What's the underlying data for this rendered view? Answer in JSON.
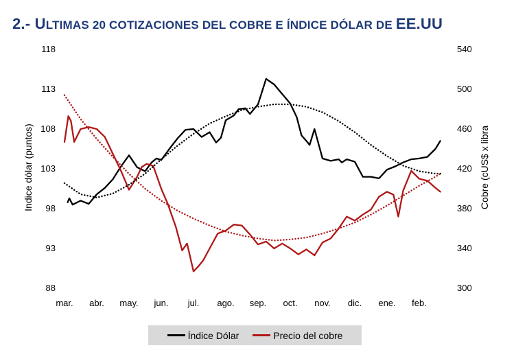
{
  "title": {
    "prefix": "2.- U",
    "rest": "ltimas 20 cotizaciones del cobre e índice dólar de ",
    "suffix": "EE.UU"
  },
  "chart_data": {
    "type": "line",
    "x_tick_labels": [
      "mar.",
      "abr.",
      "may.",
      "jun.",
      "jul.",
      "ago.",
      "sep.",
      "oct.",
      "nov.",
      "dic.",
      "ene.",
      "feb."
    ],
    "y_left": {
      "label": "Indice dólar (puntos)",
      "ticks": [
        118,
        113,
        108,
        103,
        98,
        93,
        88
      ],
      "range": [
        88,
        118
      ]
    },
    "y_right": {
      "label": "Cobre (cUS$ x libra",
      "ticks": [
        540,
        500,
        460,
        420,
        380,
        340,
        300
      ],
      "range": [
        300,
        540
      ]
    },
    "colors": {
      "dollar": "#000000",
      "copper": "#b01818"
    },
    "series": [
      {
        "name": "Índice Dólar",
        "axis": "left",
        "x": [
          0.1,
          0.15,
          0.25,
          0.5,
          0.75,
          1.0,
          1.25,
          1.5,
          1.75,
          2.0,
          2.25,
          2.5,
          2.7,
          2.85,
          3.0,
          3.25,
          3.5,
          3.75,
          4.0,
          4.25,
          4.5,
          4.7,
          4.85,
          5.0,
          5.25,
          5.4,
          5.6,
          5.75,
          6.0,
          6.25,
          6.5,
          6.75,
          7.0,
          7.2,
          7.35,
          7.5,
          7.6,
          7.75,
          8.0,
          8.25,
          8.5,
          8.6,
          8.75,
          9.0,
          9.25,
          9.5,
          9.75,
          10.0,
          10.25,
          10.5,
          10.75,
          11.0,
          11.25,
          11.5,
          11.65
        ],
        "y": [
          98.8,
          99.3,
          98.5,
          99.0,
          98.6,
          99.8,
          100.6,
          101.7,
          103.3,
          104.7,
          103.2,
          102.7,
          103.8,
          104.3,
          104.1,
          105.5,
          106.8,
          107.9,
          108.0,
          107.0,
          107.6,
          106.3,
          106.9,
          109.1,
          109.7,
          110.5,
          110.6,
          109.9,
          111.1,
          114.3,
          113.6,
          112.4,
          111.2,
          109.5,
          107.2,
          106.5,
          106.0,
          108.0,
          104.3,
          104.0,
          104.2,
          103.8,
          104.2,
          103.9,
          102.0,
          102.0,
          101.8,
          102.9,
          103.3,
          103.8,
          104.2,
          104.3,
          104.5,
          105.5,
          106.5
        ]
      },
      {
        "name": "Precio del cobre",
        "axis": "right",
        "x": [
          0.0,
          0.12,
          0.2,
          0.3,
          0.5,
          0.75,
          1.0,
          1.25,
          1.5,
          1.75,
          2.0,
          2.25,
          2.4,
          2.55,
          2.75,
          3.0,
          3.2,
          3.45,
          3.65,
          3.8,
          4.0,
          4.15,
          4.3,
          4.5,
          4.75,
          5.0,
          5.25,
          5.5,
          5.75,
          6.0,
          6.25,
          6.5,
          6.75,
          7.0,
          7.25,
          7.5,
          7.75,
          8.0,
          8.25,
          8.5,
          8.75,
          9.0,
          9.25,
          9.5,
          9.75,
          10.0,
          10.2,
          10.35,
          10.5,
          10.75,
          11.0,
          11.25,
          11.5,
          11.65
        ],
        "y": [
          447,
          473,
          468,
          447,
          460,
          462,
          460,
          452,
          435,
          418,
          399,
          412,
          422,
          425,
          423,
          400,
          385,
          362,
          338,
          345,
          317,
          322,
          328,
          340,
          355,
          358,
          364,
          363,
          354,
          344,
          347,
          340,
          345,
          340,
          334,
          339,
          333,
          346,
          350,
          360,
          372,
          368,
          374,
          379,
          392,
          397,
          394,
          372,
          398,
          418,
          410,
          408,
          401,
          397
        ]
      },
      {
        "name": "",
        "axis": "left",
        "style": "dotted",
        "x": [
          0,
          0.5,
          1,
          1.5,
          2,
          2.5,
          3,
          3.5,
          4,
          4.5,
          5,
          5.5,
          6,
          6.5,
          7,
          7.5,
          8,
          8.5,
          9,
          9.5,
          10,
          10.5,
          11,
          11.5,
          11.7
        ],
        "y": [
          101.2,
          99.8,
          99.4,
          99.9,
          101.0,
          102.4,
          104.2,
          105.9,
          107.4,
          108.7,
          109.6,
          110.4,
          110.8,
          111.1,
          111.1,
          110.8,
          110.1,
          109.0,
          107.6,
          106.0,
          104.6,
          103.4,
          102.7,
          102.4,
          102.4
        ]
      },
      {
        "name": "",
        "axis": "right",
        "style": "dotted",
        "x": [
          0,
          0.5,
          1,
          1.5,
          2,
          2.5,
          3,
          3.5,
          4,
          4.5,
          5,
          5.5,
          6,
          6.5,
          7,
          7.5,
          8,
          8.5,
          9,
          9.5,
          10,
          10.5,
          11,
          11.5,
          11.7
        ],
        "y": [
          494,
          470,
          450,
          432,
          415,
          400,
          388,
          378,
          370,
          363,
          357,
          353,
          350,
          348,
          349,
          351,
          355,
          360,
          366,
          374,
          383,
          393,
          403,
          412,
          416
        ]
      }
    ],
    "legend": {
      "position": "bottom",
      "entries": [
        "Índice Dólar",
        "Precio del cobre"
      ]
    },
    "grid": false
  }
}
